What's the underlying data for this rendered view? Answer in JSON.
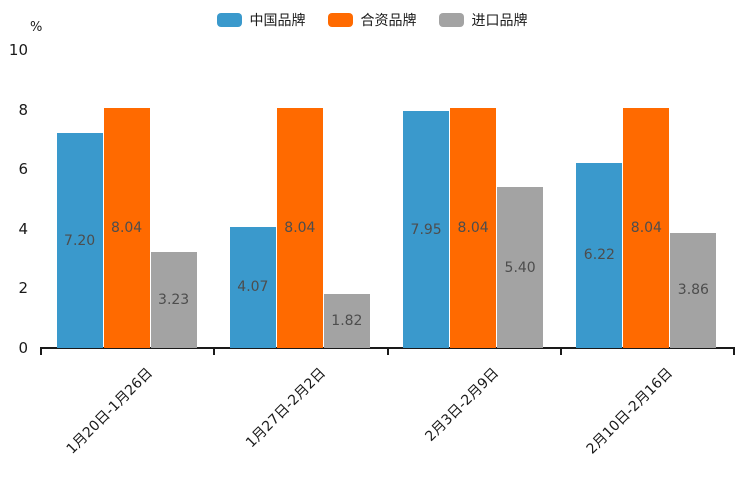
{
  "chart_data": {
    "type": "bar",
    "title": "",
    "xlabel": "",
    "ylabel": "%",
    "ylim": [
      0,
      10
    ],
    "yticks": [
      0,
      2,
      4,
      6,
      8,
      10
    ],
    "grid": false,
    "legend_position": "top",
    "value_label_decimals": 2,
    "categories": [
      "1月20日-1月26日",
      "1月27日-2月2日",
      "2月3日-2月9日",
      "2月10日-2月16日"
    ],
    "series": [
      {
        "name": "中国品牌",
        "color": "#3A99CC",
        "values": [
          7.2,
          4.07,
          7.95,
          6.22
        ]
      },
      {
        "name": "合资品牌",
        "color": "#FF6A00",
        "values": [
          8.04,
          8.04,
          8.04,
          8.04
        ]
      },
      {
        "name": "进口品牌",
        "color": "#A3A3A3",
        "values": [
          3.23,
          1.82,
          5.4,
          3.86
        ]
      }
    ],
    "colors": {
      "axis": "#1a1a1a",
      "bar_value_text": "#4d4d4d",
      "tick_text": "#1a1a1a"
    }
  }
}
